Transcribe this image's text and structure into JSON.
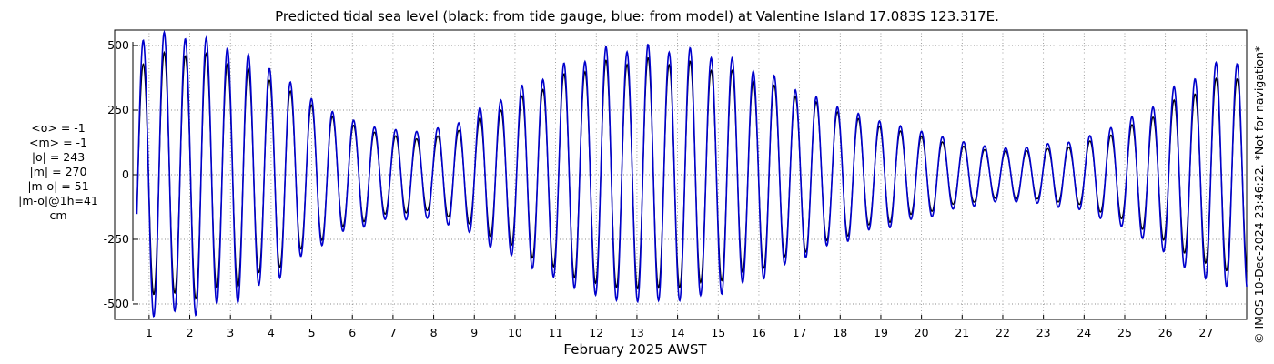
{
  "chart_data": {
    "type": "line",
    "title": "Predicted tidal sea level (black: from tide gauge, blue: from model) at Valentine Island 17.083S 123.317E.",
    "xlabel": "February 2025 AWST",
    "ylabel": "",
    "x_ticks": [
      "1",
      "2",
      "3",
      "4",
      "5",
      "6",
      "7",
      "8",
      "9",
      "10",
      "11",
      "12",
      "13",
      "14",
      "15",
      "16",
      "17",
      "18",
      "19",
      "20",
      "21",
      "22",
      "23",
      "24",
      "25",
      "26",
      "27"
    ],
    "y_ticks": [
      "500",
      "250",
      "0",
      "-250",
      "-500"
    ],
    "xlim": [
      0.6,
      28.0
    ],
    "ylim": [
      -560,
      560
    ],
    "grid": true,
    "series": [
      {
        "name": "from tide gauge",
        "color": "#000000",
        "x": [
          0.7,
          1.2,
          1.7,
          2.2,
          2.7,
          3.2,
          3.7,
          4.2,
          4.7,
          5.2,
          5.7,
          6.2,
          6.7,
          7.2,
          7.7,
          8.2,
          8.7,
          9.2,
          9.7,
          10.2,
          10.7,
          11.2,
          11.7,
          12.2,
          12.7,
          13.2,
          13.7,
          14.2,
          14.7,
          15.2,
          15.7,
          16.2,
          16.7,
          17.2,
          17.7,
          18.2,
          18.7,
          19.2,
          19.7,
          20.2,
          20.7,
          21.2,
          21.7,
          22.2,
          22.7,
          23.2,
          23.7,
          24.2,
          24.7,
          25.2,
          25.7,
          26.2,
          26.7,
          27.2,
          27.7,
          28.0
        ],
        "amplitude": [
          430,
          460,
          470,
          470,
          450,
          420,
          390,
          350,
          300,
          250,
          210,
          180,
          160,
          145,
          140,
          150,
          180,
          220,
          260,
          300,
          340,
          380,
          410,
          430,
          440,
          440,
          440,
          430,
          420,
          400,
          380,
          350,
          320,
          290,
          260,
          230,
          200,
          180,
          160,
          140,
          120,
          105,
          95,
          90,
          95,
          100,
          110,
          130,
          160,
          190,
          230,
          280,
          320,
          360,
          380,
          390
        ]
      },
      {
        "name": "from model",
        "color": "#0000cc",
        "x": [
          0.7,
          1.2,
          1.7,
          2.2,
          2.7,
          3.2,
          3.7,
          4.2,
          4.7,
          5.2,
          5.7,
          6.2,
          6.7,
          7.2,
          7.7,
          8.2,
          8.7,
          9.2,
          9.7,
          10.2,
          10.7,
          11.2,
          11.7,
          12.2,
          12.7,
          13.2,
          13.7,
          14.2,
          14.7,
          15.2,
          15.7,
          16.2,
          16.7,
          17.2,
          17.7,
          18.2,
          18.7,
          19.2,
          19.7,
          20.2,
          20.7,
          21.2,
          21.7,
          22.2,
          22.7,
          23.2,
          23.7,
          24.2,
          24.7,
          25.2,
          25.7,
          26.2,
          26.7,
          27.2,
          27.7,
          28.0
        ],
        "amplitude": [
          530,
          540,
          540,
          530,
          510,
          480,
          440,
          390,
          330,
          270,
          230,
          200,
          180,
          170,
          170,
          180,
          210,
          260,
          300,
          340,
          380,
          420,
          450,
          480,
          490,
          490,
          490,
          480,
          470,
          450,
          420,
          390,
          350,
          310,
          280,
          250,
          220,
          200,
          180,
          160,
          140,
          120,
          110,
          100,
          110,
          120,
          130,
          150,
          190,
          220,
          270,
          330,
          380,
          420,
          440,
          450
        ]
      }
    ]
  },
  "stats": [
    "<o> = -1",
    "<m> = -1",
    "|o| = 243",
    "|m| = 270",
    "|m-o| = 51",
    "|m-o|@1h=41",
    "cm"
  ],
  "copyright": "© IMOS 10-Dec-2024 23:46:22. *Not for navigation*"
}
